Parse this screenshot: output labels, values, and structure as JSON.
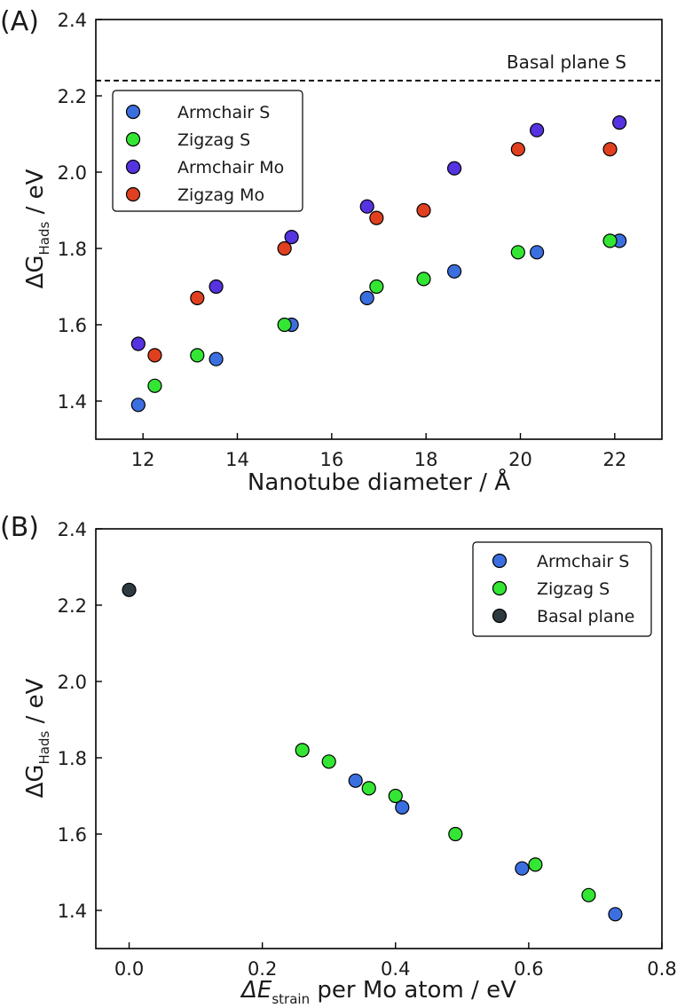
{
  "chart_data": [
    {
      "panel_label": "(A)",
      "type": "scatter",
      "xlabel": "Nanotube diameter / Å",
      "ylabel": {
        "main": "ΔG",
        "sub": "H",
        "subsub": "ads",
        "unit": " / eV"
      },
      "xlim": [
        11,
        23
      ],
      "ylim": [
        1.3,
        2.4
      ],
      "xticks": [
        12,
        14,
        16,
        18,
        20,
        22
      ],
      "yticks": [
        1.4,
        1.6,
        1.8,
        2.0,
        2.2,
        2.4
      ],
      "xtick_labels": [
        "12",
        "14",
        "16",
        "18",
        "20",
        "22"
      ],
      "ytick_labels": [
        "1.4",
        "1.6",
        "1.8",
        "2.0",
        "2.2",
        "2.4"
      ],
      "legend_position": "upper-left",
      "reference_line": {
        "y": 2.24,
        "style": "dashed",
        "label": "Basal plane S"
      },
      "series": [
        {
          "name": "Armchair S",
          "color": "#3b6fe0",
          "x": [
            11.9,
            13.55,
            15.15,
            16.75,
            18.6,
            20.35,
            22.1
          ],
          "y": [
            1.39,
            1.51,
            1.6,
            1.67,
            1.74,
            1.79,
            1.82
          ]
        },
        {
          "name": "Zigzag S",
          "color": "#33e633",
          "x": [
            12.25,
            13.15,
            15.0,
            16.95,
            17.95,
            19.95,
            21.9
          ],
          "y": [
            1.44,
            1.52,
            1.6,
            1.7,
            1.72,
            1.79,
            1.82
          ]
        },
        {
          "name": "Armchair Mo",
          "color": "#5533e0",
          "x": [
            11.9,
            13.55,
            15.15,
            16.75,
            18.6,
            20.35,
            22.1
          ],
          "y": [
            1.55,
            1.7,
            1.83,
            1.91,
            2.01,
            2.11,
            2.13
          ]
        },
        {
          "name": "Zigzag Mo",
          "color": "#e0401f",
          "x": [
            12.25,
            13.15,
            15.0,
            16.95,
            17.95,
            19.95,
            21.9
          ],
          "y": [
            1.52,
            1.67,
            1.8,
            1.88,
            1.9,
            2.06,
            2.06
          ]
        }
      ]
    },
    {
      "panel_label": "(B)",
      "type": "scatter",
      "xlabel": {
        "main": "ΔE",
        "sub": "strain",
        "rest": " per Mo atom / eV"
      },
      "ylabel": {
        "main": "ΔG",
        "sub": "H",
        "subsub": "ads",
        "unit": " / eV"
      },
      "xlim": [
        -0.05,
        0.8
      ],
      "ylim": [
        1.3,
        2.4
      ],
      "xticks": [
        0.0,
        0.2,
        0.4,
        0.6,
        0.8
      ],
      "yticks": [
        1.4,
        1.6,
        1.8,
        2.0,
        2.2,
        2.4
      ],
      "xtick_labels": [
        "0.0",
        "0.2",
        "0.4",
        "0.6",
        "0.8"
      ],
      "ytick_labels": [
        "1.4",
        "1.6",
        "1.8",
        "2.0",
        "2.2",
        "2.4"
      ],
      "legend_position": "upper-right",
      "series": [
        {
          "name": "Armchair S",
          "color": "#3b6fe0",
          "x": [
            0.73,
            0.59,
            0.41,
            0.34
          ],
          "y": [
            1.39,
            1.51,
            1.67,
            1.74
          ]
        },
        {
          "name": "Zigzag S",
          "color": "#33e633",
          "x": [
            0.69,
            0.61,
            0.49,
            0.4,
            0.36,
            0.3,
            0.26
          ],
          "y": [
            1.44,
            1.52,
            1.6,
            1.7,
            1.72,
            1.79,
            1.82
          ]
        },
        {
          "name": "Basal plane",
          "color": "#2d3a40",
          "x": [
            0.0
          ],
          "y": [
            2.24
          ]
        }
      ]
    }
  ]
}
